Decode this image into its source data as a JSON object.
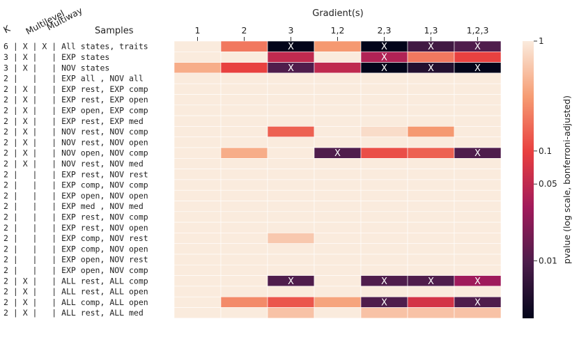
{
  "chart_data": {
    "type": "heatmap",
    "title": "Gradient(s)",
    "row_header_label": "Samples",
    "col_header_k": "K",
    "col_header_multilevel": "Multilevel",
    "col_header_multiway": "Multiway",
    "columns": [
      "1",
      "2",
      "3",
      "1,2",
      "2,3",
      "1,3",
      "1,2,3"
    ],
    "rows": [
      "6 | X | X | All states, traits",
      "3 | X |   | EXP states",
      "3 | X |   | NOV states",
      "2 |   |   | EXP all , NOV all",
      "2 | X |   | EXP rest, EXP comp",
      "2 | X |   | EXP rest, EXP open",
      "2 | X |   | EXP open, EXP comp",
      "2 | X |   | EXP rest, EXP med",
      "2 | X |   | NOV rest, NOV comp",
      "2 | X |   | NOV rest, NOV open",
      "2 | X |   | NOV open, NOV comp",
      "2 | X |   | NOV rest, NOV med",
      "2 |   |   | EXP rest, NOV rest",
      "2 |   |   | EXP comp, NOV comp",
      "2 |   |   | EXP open, NOV open",
      "2 |   |   | EXP med , NOV med",
      "2 |   |   | EXP rest, NOV comp",
      "2 |   |   | EXP rest, NOV open",
      "2 |   |   | EXP comp, NOV rest",
      "2 |   |   | EXP comp, NOV open",
      "2 |   |   | EXP open, NOV rest",
      "2 |   |   | EXP open, NOV comp",
      "2 | X |   | ALL rest, ALL comp",
      "2 | X |   | ALL rest, ALL open",
      "2 | X |   | ALL comp, ALL open",
      "2 | X |   | ALL rest, ALL med"
    ],
    "values": [
      [
        1,
        0.2,
        0.003,
        0.3,
        0.003,
        0.008,
        0.01
      ],
      [
        1,
        1,
        0.05,
        1,
        0.04,
        0.2,
        0.1
      ],
      [
        0.4,
        0.1,
        0.01,
        0.05,
        0.003,
        0.005,
        0.002
      ],
      [
        1,
        1,
        1,
        1,
        1,
        1,
        1
      ],
      [
        1,
        1,
        1,
        1,
        1,
        1,
        1
      ],
      [
        1,
        1,
        1,
        1,
        1,
        1,
        1
      ],
      [
        1,
        1,
        1,
        1,
        1,
        1,
        1
      ],
      [
        1,
        1,
        1,
        1,
        1,
        1,
        1
      ],
      [
        1,
        1,
        0.15,
        1,
        0.8,
        0.3,
        1
      ],
      [
        1,
        1,
        1,
        1,
        1,
        1,
        1
      ],
      [
        1,
        0.4,
        1,
        0.01,
        0.12,
        0.15,
        0.01
      ],
      [
        1,
        1,
        1,
        1,
        1,
        1,
        1
      ],
      [
        1,
        1,
        1,
        1,
        1,
        1,
        1
      ],
      [
        1,
        1,
        1,
        1,
        1,
        1,
        1
      ],
      [
        1,
        1,
        1,
        1,
        1,
        1,
        1
      ],
      [
        1,
        1,
        1,
        1,
        1,
        1,
        1
      ],
      [
        1,
        1,
        1,
        1,
        1,
        1,
        1
      ],
      [
        1,
        1,
        1,
        1,
        1,
        1,
        1
      ],
      [
        1,
        1,
        0.6,
        1,
        1,
        1,
        1
      ],
      [
        1,
        1,
        1,
        1,
        1,
        1,
        1
      ],
      [
        1,
        1,
        1,
        1,
        1,
        1,
        1
      ],
      [
        1,
        1,
        1,
        1,
        1,
        1,
        1
      ],
      [
        1,
        1,
        0.01,
        1,
        0.01,
        0.01,
        0.03
      ],
      [
        1,
        1,
        1,
        1,
        1,
        1,
        1
      ],
      [
        1,
        0.25,
        0.13,
        0.35,
        0.01,
        0.07,
        0.01
      ],
      [
        1,
        1,
        0.55,
        1,
        0.55,
        0.55,
        0.55
      ]
    ],
    "marked": [
      [
        0,
        2
      ],
      [
        0,
        4
      ],
      [
        0,
        5
      ],
      [
        0,
        6
      ],
      [
        1,
        4
      ],
      [
        2,
        2
      ],
      [
        2,
        4
      ],
      [
        2,
        5
      ],
      [
        2,
        6
      ],
      [
        10,
        3
      ],
      [
        10,
        6
      ],
      [
        22,
        2
      ],
      [
        22,
        4
      ],
      [
        22,
        5
      ],
      [
        22,
        6
      ],
      [
        24,
        4
      ],
      [
        24,
        6
      ]
    ],
    "mark_symbol": "X",
    "colorbar": {
      "label": "pvalue (log scale, bonferroni-adjusted)",
      "scale": "log",
      "range": [
        0.003,
        1
      ],
      "ticks": [
        {
          "value": 1,
          "label": "1"
        },
        {
          "value": 0.1,
          "label": "0.1"
        },
        {
          "value": 0.05,
          "label": "0.05"
        },
        {
          "value": 0.01,
          "label": "0.01"
        }
      ]
    }
  }
}
